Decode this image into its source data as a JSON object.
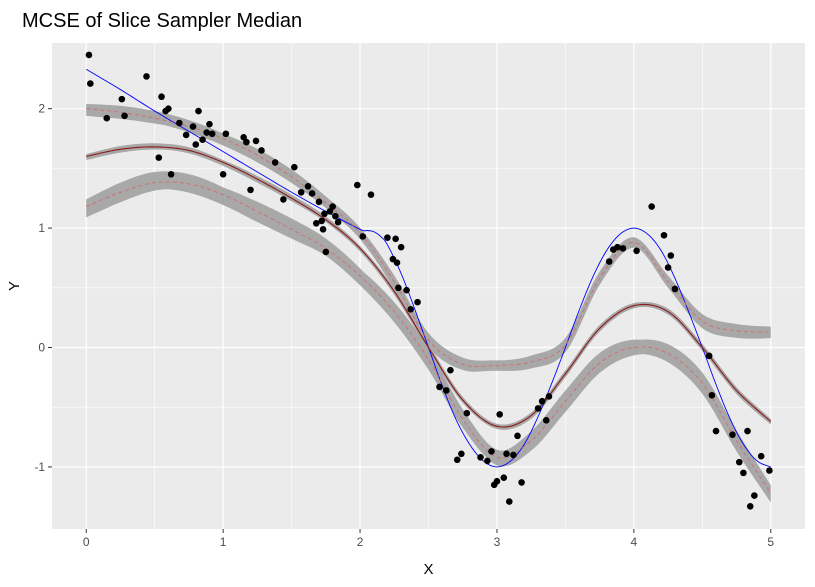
{
  "chart_data": {
    "type": "scatter",
    "title": "MCSE of Slice Sampler Median",
    "xlabel": "X",
    "ylabel": "Y",
    "xlim": [
      -0.25,
      5.25
    ],
    "ylim": [
      -1.52,
      2.55
    ],
    "x_ticks": [
      0,
      1,
      2,
      3,
      4,
      5
    ],
    "x_tick_labels": [
      "0",
      "1",
      "2",
      "3",
      "4",
      "5"
    ],
    "y_ticks": [
      -1,
      0,
      1,
      2
    ],
    "y_tick_labels": [
      "-1",
      "0",
      "1",
      "2"
    ],
    "grid": true,
    "legend": "none",
    "colors": {
      "panel": "#ebebeb",
      "grid": "#ffffff",
      "points": "#000000",
      "true_curve": "#0000ff",
      "median_curve": "#8b1a1a",
      "band_curve": "#d66a6a",
      "mcse_band": "#a8a8a8"
    },
    "points": {
      "x": [
        0.02,
        0.03,
        0.15,
        0.26,
        0.28,
        0.44,
        0.53,
        0.55,
        0.58,
        0.6,
        0.62,
        0.68,
        0.73,
        0.78,
        0.8,
        0.82,
        0.85,
        0.88,
        0.9,
        0.92,
        1.0,
        1.02,
        1.15,
        1.17,
        1.2,
        1.24,
        1.28,
        1.38,
        1.44,
        1.52,
        1.57,
        1.62,
        1.65,
        1.68,
        1.7,
        1.72,
        1.73,
        1.74,
        1.75,
        1.78,
        1.8,
        1.82,
        1.84,
        1.98,
        2.02,
        2.08,
        2.2,
        2.24,
        2.26,
        2.27,
        2.28,
        2.3,
        2.34,
        2.37,
        2.42,
        2.58,
        2.63,
        2.66,
        2.71,
        2.74,
        2.78,
        2.88,
        2.93,
        2.96,
        2.98,
        3.0,
        3.02,
        3.05,
        3.07,
        3.09,
        3.12,
        3.15,
        3.18,
        3.3,
        3.33,
        3.36,
        3.38,
        3.82,
        3.85,
        3.88,
        3.92,
        4.02,
        4.13,
        4.22,
        4.25,
        4.27,
        4.3,
        4.55,
        4.57,
        4.6,
        4.72,
        4.77,
        4.8,
        4.83,
        4.85,
        4.88,
        4.93,
        4.99
      ],
      "y": [
        2.45,
        2.21,
        1.92,
        2.08,
        1.94,
        2.27,
        1.59,
        2.1,
        1.98,
        2.0,
        1.45,
        1.88,
        1.78,
        1.85,
        1.7,
        1.98,
        1.74,
        1.8,
        1.87,
        1.79,
        1.45,
        1.79,
        1.76,
        1.72,
        1.32,
        1.73,
        1.65,
        1.55,
        1.24,
        1.51,
        1.3,
        1.35,
        1.29,
        1.04,
        1.22,
        1.06,
        0.99,
        1.12,
        0.8,
        1.14,
        1.18,
        1.1,
        1.05,
        1.36,
        0.93,
        1.28,
        0.92,
        0.74,
        0.91,
        0.71,
        0.5,
        0.84,
        0.48,
        0.32,
        0.38,
        -0.33,
        -0.36,
        -0.19,
        -0.94,
        -0.89,
        -0.55,
        -0.92,
        -0.95,
        -0.87,
        -1.15,
        -1.12,
        -0.56,
        -1.09,
        -0.89,
        -1.29,
        -0.9,
        -0.74,
        -1.13,
        -0.51,
        -0.45,
        -0.61,
        -0.41,
        0.72,
        0.82,
        0.84,
        0.83,
        0.81,
        1.18,
        0.94,
        0.67,
        0.77,
        0.49,
        -0.07,
        -0.4,
        -0.7,
        -0.73,
        -0.96,
        -1.05,
        -0.7,
        -1.33,
        -1.24,
        -0.91,
        -1.03
      ]
    },
    "series": [
      {
        "x": [
          0.0,
          0.25,
          0.5,
          0.75,
          1.0,
          1.25,
          1.5,
          1.75,
          2.0,
          2.05,
          2.1,
          2.15,
          2.2,
          2.3,
          2.4,
          2.5,
          2.6,
          2.7,
          2.8,
          2.9,
          3.0,
          3.1,
          3.2,
          3.3,
          3.4,
          3.5,
          3.6,
          3.7,
          3.8,
          3.9,
          4.0,
          4.1,
          4.2,
          4.3,
          4.4,
          4.5,
          4.6,
          4.7,
          4.8,
          4.9,
          5.0
        ],
        "y": [
          2.33,
          2.16,
          1.98,
          1.81,
          1.64,
          1.47,
          1.3,
          1.14,
          0.99,
          0.98,
          0.97,
          0.93,
          0.86,
          0.62,
          0.32,
          0.0,
          -0.32,
          -0.6,
          -0.81,
          -0.95,
          -1.0,
          -0.95,
          -0.81,
          -0.58,
          -0.3,
          0.0,
          0.31,
          0.59,
          0.81,
          0.95,
          1.0,
          0.95,
          0.81,
          0.58,
          0.3,
          0.0,
          -0.31,
          -0.59,
          -0.81,
          -0.95,
          -1.0
        ]
      },
      {
        "x": [
          0.0,
          0.25,
          0.5,
          0.75,
          1.0,
          1.25,
          1.5,
          1.75,
          2.0,
          2.25,
          2.5,
          2.75,
          3.0,
          3.25,
          3.5,
          3.75,
          4.0,
          4.25,
          4.5,
          4.75,
          5.0
        ],
        "y": [
          1.6,
          1.66,
          1.68,
          1.65,
          1.55,
          1.41,
          1.25,
          1.07,
          0.83,
          0.47,
          0.0,
          -0.44,
          -0.66,
          -0.57,
          -0.22,
          0.16,
          0.35,
          0.3,
          0.0,
          -0.36,
          -0.62
        ]
      },
      {
        "x": [
          0.0,
          0.25,
          0.5,
          0.75,
          1.0,
          1.25,
          1.5,
          1.75,
          2.0,
          2.25,
          2.5,
          2.75,
          3.0,
          3.25,
          3.5,
          3.75,
          4.0,
          4.25,
          4.5,
          4.75,
          5.0
        ],
        "y": [
          2.0,
          1.97,
          1.92,
          1.85,
          1.75,
          1.61,
          1.43,
          1.21,
          0.96,
          0.55,
          0.06,
          -0.14,
          -0.15,
          -0.12,
          0.02,
          0.58,
          0.88,
          0.55,
          0.22,
          0.14,
          0.13
        ]
      },
      {
        "x": [
          0.0,
          0.25,
          0.5,
          0.75,
          1.0,
          1.25,
          1.5,
          1.75,
          2.0,
          2.25,
          2.5,
          2.75,
          3.0,
          3.25,
          3.5,
          3.75,
          4.0,
          4.25,
          4.5,
          4.75,
          5.0
        ],
        "y": [
          1.18,
          1.3,
          1.38,
          1.37,
          1.28,
          1.14,
          0.99,
          0.83,
          0.6,
          0.3,
          -0.1,
          -0.6,
          -0.92,
          -0.78,
          -0.45,
          -0.13,
          0.0,
          -0.05,
          -0.3,
          -0.78,
          -1.22
        ]
      }
    ],
    "mcse_band_halfwidth": [
      0.025,
      0.05,
      0.075
    ]
  }
}
